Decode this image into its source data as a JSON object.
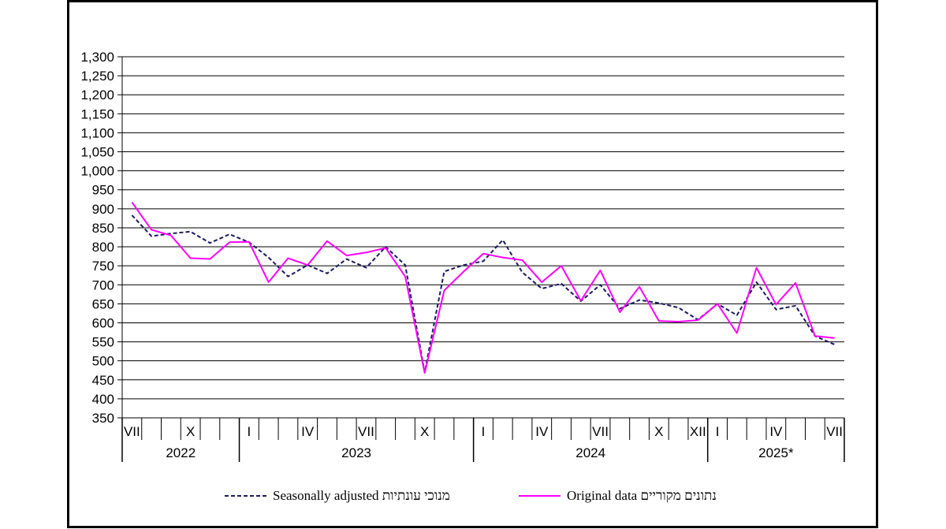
{
  "chart_data": {
    "type": "line",
    "ylim": [
      350,
      1300
    ],
    "y_ticks": [
      "350",
      "400",
      "450",
      "500",
      "550",
      "600",
      "650",
      "700",
      "750",
      "800",
      "850",
      "900",
      "950",
      "1,000",
      "1,050",
      "1,100",
      "1,150",
      "1,200",
      "1,250",
      "1,300"
    ],
    "grid": true,
    "month_labels": [
      "VII",
      "X",
      "I",
      "IV",
      "VII",
      "X",
      "I",
      "IV",
      "VII",
      "X",
      "XII",
      "I",
      "IV",
      "VII"
    ],
    "year_labels": [
      "2022",
      "2023",
      "2024",
      "2025*"
    ],
    "x_start": "2022-07",
    "x_end": "2025-07",
    "series": [
      {
        "name": "Seasonally adjusted מנוכי עונתיות",
        "style": "dashed",
        "color": "#1a1a5e",
        "values": [
          883,
          828,
          835,
          840,
          810,
          833,
          812,
          772,
          722,
          752,
          730,
          768,
          745,
          800,
          752,
          470,
          735,
          752,
          762,
          818,
          733,
          690,
          703,
          657,
          700,
          637,
          660,
          652,
          640,
          608,
          650,
          620,
          707,
          635,
          645,
          565,
          543
        ]
      },
      {
        "name": "Original data נתונים מקוריים",
        "style": "solid",
        "color": "#ff00ff",
        "values": [
          917,
          845,
          830,
          770,
          768,
          812,
          813,
          707,
          770,
          752,
          815,
          777,
          785,
          797,
          722,
          468,
          685,
          735,
          782,
          772,
          765,
          707,
          750,
          658,
          738,
          628,
          695,
          605,
          603,
          607,
          650,
          573,
          745,
          648,
          705,
          565,
          560
        ]
      }
    ],
    "legend_position": "bottom"
  }
}
